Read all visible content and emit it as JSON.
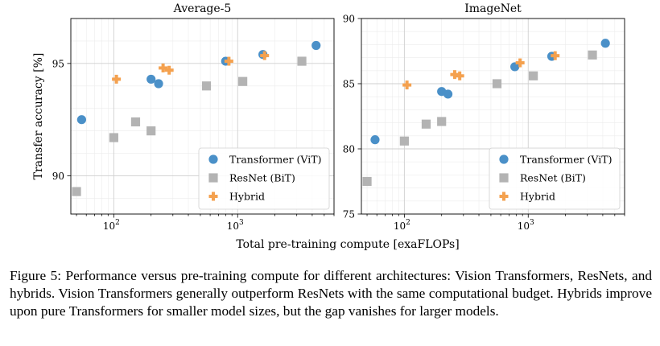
{
  "chart_data": [
    {
      "type": "scatter",
      "title": "Average-5",
      "xlabel": "",
      "ylabel": "Transfer accuracy [%]",
      "xscale": "log",
      "xlim": [
        45,
        6000
      ],
      "ylim": [
        88.3,
        97.0
      ],
      "yticks": [
        90,
        95
      ],
      "xtick_labels": [
        "10",
        "2",
        "10",
        "3"
      ],
      "grid": true,
      "legend": "lower-right",
      "series": [
        {
          "name": "Transformer (ViT)",
          "marker": "circle",
          "color": "#4a90c8",
          "points": [
            [
              55,
              92.5
            ],
            [
              200,
              94.3
            ],
            [
              230,
              94.1
            ],
            [
              800,
              95.1
            ],
            [
              1600,
              95.4
            ],
            [
              4300,
              95.8
            ]
          ]
        },
        {
          "name": "ResNet (BiT)",
          "marker": "square",
          "color": "#b3b3b3",
          "points": [
            [
              50,
              89.3
            ],
            [
              100,
              91.7
            ],
            [
              150,
              92.4
            ],
            [
              200,
              92.0
            ],
            [
              560,
              94.0
            ],
            [
              1100,
              94.2
            ],
            [
              3300,
              95.1
            ]
          ]
        },
        {
          "name": "Hybrid",
          "marker": "plus",
          "color": "#f4a14f",
          "points": [
            [
              105,
              94.3
            ],
            [
              250,
              94.8
            ],
            [
              280,
              94.7
            ],
            [
              850,
              95.1
            ],
            [
              1650,
              95.35
            ]
          ]
        }
      ]
    },
    {
      "type": "scatter",
      "title": "ImageNet",
      "xlabel": "",
      "ylabel": "",
      "xscale": "log",
      "xlim": [
        45,
        6000
      ],
      "ylim": [
        75,
        90
      ],
      "yticks": [
        75,
        80,
        85,
        90
      ],
      "xtick_labels": [
        "10",
        "2",
        "10",
        "3"
      ],
      "grid": true,
      "legend": "lower-right",
      "series": [
        {
          "name": "Transformer (ViT)",
          "marker": "circle",
          "color": "#4a90c8",
          "points": [
            [
              58,
              80.7
            ],
            [
              200,
              84.4
            ],
            [
              225,
              84.2
            ],
            [
              780,
              86.3
            ],
            [
              1550,
              87.1
            ],
            [
              4200,
              88.1
            ]
          ]
        },
        {
          "name": "ResNet (BiT)",
          "marker": "square",
          "color": "#b3b3b3",
          "points": [
            [
              50,
              77.5
            ],
            [
              100,
              80.6
            ],
            [
              150,
              81.9
            ],
            [
              200,
              82.1
            ],
            [
              560,
              85.0
            ],
            [
              1100,
              85.6
            ],
            [
              3300,
              87.2
            ]
          ]
        },
        {
          "name": "Hybrid",
          "marker": "plus",
          "color": "#f4a14f",
          "points": [
            [
              105,
              84.9
            ],
            [
              255,
              85.7
            ],
            [
              280,
              85.6
            ],
            [
              860,
              86.6
            ],
            [
              1650,
              87.15
            ]
          ]
        }
      ]
    }
  ],
  "shared_xlabel": "Total pre-training compute [exaFLOPs]",
  "caption": "Figure 5: Performance versus pre-training compute for different architectures: Vision Transformers, ResNets, and hybrids. Vision Transformers generally outperform ResNets with the same computational budget. Hybrids improve upon pure Transformers for smaller model sizes, but the gap vanishes for larger models."
}
